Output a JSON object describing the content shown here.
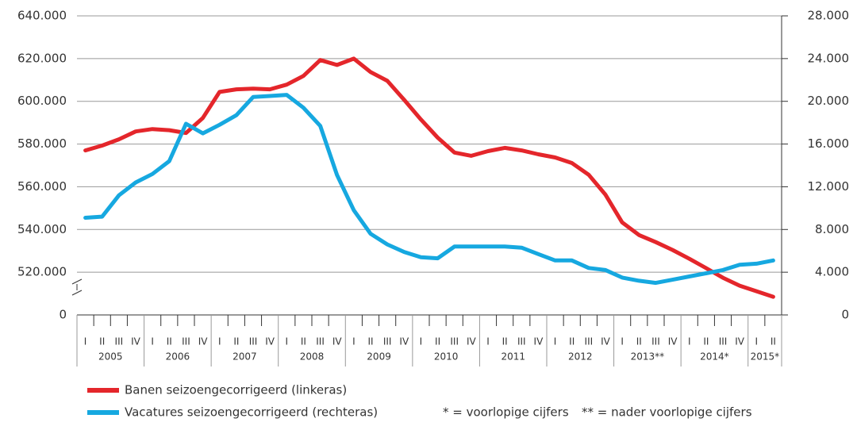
{
  "chart_data": {
    "type": "line",
    "categories": [
      "I",
      "II",
      "III",
      "IV",
      "I",
      "II",
      "III",
      "IV",
      "I",
      "II",
      "III",
      "IV",
      "I",
      "II",
      "III",
      "IV",
      "I",
      "II",
      "III",
      "IV",
      "I",
      "II",
      "III",
      "IV",
      "I",
      "II",
      "III",
      "IV",
      "I",
      "II",
      "III",
      "IV",
      "I",
      "II",
      "III",
      "IV",
      "I",
      "II",
      "III",
      "IV",
      "I",
      "II"
    ],
    "year_labels": [
      "2005",
      "2006",
      "2007",
      "2008",
      "2009",
      "2010",
      "2011",
      "2012",
      "2013**",
      "2014*",
      "2015*"
    ],
    "series": [
      {
        "name": "Banen seizoengecorrigeerd (linkeras)",
        "color": "#e4262b",
        "axis": "y",
        "values": [
          577000,
          579300,
          582200,
          585900,
          587000,
          586500,
          585200,
          592200,
          604400,
          605600,
          605900,
          605600,
          607800,
          611900,
          619300,
          617000,
          620000,
          613700,
          609600,
          600700,
          591500,
          583000,
          576000,
          574500,
          576700,
          578200,
          577000,
          575200,
          573700,
          571100,
          565600,
          556300,
          543300,
          537400,
          534100,
          530400,
          526300,
          521900,
          517400,
          513700,
          511100,
          508500
        ]
      },
      {
        "name": "Vacatures seizoengecorrigeerd (rechteras)",
        "color": "#16a8e0",
        "axis": "y2",
        "values": [
          9100,
          9200,
          11200,
          12400,
          13200,
          14400,
          17900,
          17000,
          17800,
          18700,
          20400,
          20500,
          20600,
          19400,
          17700,
          13100,
          9800,
          7600,
          6600,
          5900,
          5400,
          5300,
          6400,
          6400,
          6400,
          6400,
          6300,
          5700,
          5100,
          5100,
          4400,
          4200,
          3500,
          3200,
          3000,
          3300,
          3600,
          3900,
          4200,
          4700,
          4800,
          5100
        ]
      }
    ],
    "ylim": [
      500000,
      640000
    ],
    "yticks": [
      {
        "value": 520000,
        "label": "520.000"
      },
      {
        "value": 540000,
        "label": "540.000"
      },
      {
        "value": 560000,
        "label": "560.000"
      },
      {
        "value": 580000,
        "label": "580.000"
      },
      {
        "value": 600000,
        "label": "600.000"
      },
      {
        "value": 620000,
        "label": "620.000"
      },
      {
        "value": 640000,
        "label": "640.000"
      }
    ],
    "ybreak_label": "0",
    "y2lim": [
      0,
      28000
    ],
    "y2ticks": [
      0,
      {
        "value": 4000,
        "label": "4.000"
      },
      {
        "value": 8000,
        "label": "8.000"
      },
      {
        "value": 12000,
        "label": "12.000"
      },
      {
        "value": 16000,
        "label": "16.000"
      },
      {
        "value": 20000,
        "label": "20.000"
      },
      {
        "value": 24000,
        "label": "24.000"
      },
      {
        "value": 28000,
        "label": "28.000"
      }
    ],
    "grid": true,
    "notes": [
      "* = voorlopige cijfers",
      "** = nader voorlopige cijfers"
    ]
  }
}
